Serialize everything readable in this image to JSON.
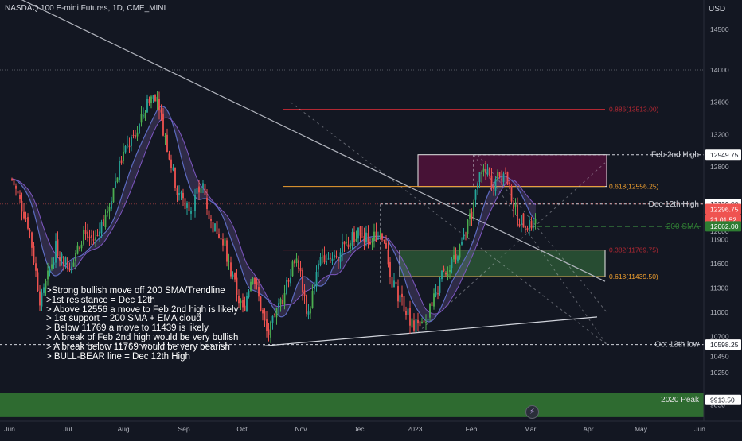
{
  "header": {
    "title": "NASDAQ 100 E-mini Futures, 1D, CME_MINI",
    "currency": "USD"
  },
  "annotations": {
    "resistance_label": "Feb 2nd High",
    "bullbear_label": "Dec 12th High",
    "sma_label": "200 SMA",
    "support_label": "Oct 13th low",
    "peak_label": "2020 Peak",
    "fib_886": "0.886(13513.00)",
    "fib_618_top": "0.618(12556.25)",
    "fib_382": "0.382(11769.75)",
    "fib_618_bottom": "0.618(11439.50)"
  },
  "price_tags": {
    "feb_high": "12949.75",
    "dec_high": "12339.00",
    "last_price": "12296.75",
    "countdown": "21:01:52",
    "sma": "12062.00",
    "oct_low": "10598.25",
    "peak": "9913.50"
  },
  "notes": [
    ">Strong bullish move off 200 SMA/Trendline",
    ">1st resistance = Dec 12th",
    "> Above 12556 a move to Feb 2nd high is likely",
    "> 1st support = 200 SMA + EMA cloud",
    "> Below 11769 a move to 11439 is likely",
    "> A break of Feb 2nd high would be very bullish",
    "> A break below 11769 would be very bearish",
    "> BULL-BEAR line  = Dec 12th High"
  ],
  "colors": {
    "background": "#131722",
    "up": "#26a69a",
    "up_bright": "#4caf50",
    "down": "#ef5350",
    "fib_red": "#b22833",
    "fib_orange": "#f0a030",
    "sma": "#2e7d32",
    "text": "#d1d4dc"
  },
  "chart_data": {
    "type": "candlestick",
    "title": "NASDAQ 100 E-mini Futures, 1D, CME_MINI",
    "x_axis": {
      "ticks": [
        "Jun",
        "Jul",
        "Aug",
        "Sep",
        "Oct",
        "Nov",
        "Dec",
        "2023",
        "Feb",
        "Mar",
        "Apr",
        "May",
        "Jun"
      ]
    },
    "y_axis": {
      "label": "USD",
      "ticks": [
        9850,
        10250,
        10450,
        10700,
        11000,
        11300,
        11600,
        11900,
        12000,
        12200,
        12800,
        13200,
        13600,
        14000,
        14500,
        15000
      ],
      "range": [
        9700,
        15200
      ]
    },
    "series": [
      {
        "key": "price",
        "points": [
          [
            "2022-06-01",
            12650
          ],
          [
            "2022-06-10",
            12050
          ],
          [
            "2022-06-16",
            11100
          ],
          [
            "2022-06-24",
            11800
          ],
          [
            "2022-07-01",
            11550
          ],
          [
            "2022-07-08",
            11950
          ],
          [
            "2022-07-15",
            11900
          ],
          [
            "2022-07-22",
            12350
          ],
          [
            "2022-07-29",
            12950
          ],
          [
            "2022-08-05",
            13200
          ],
          [
            "2022-08-12",
            13650
          ],
          [
            "2022-08-16",
            13720
          ],
          [
            "2022-08-19",
            13300
          ],
          [
            "2022-08-26",
            12550
          ],
          [
            "2022-09-02",
            12250
          ],
          [
            "2022-09-09",
            12600
          ],
          [
            "2022-09-13",
            12100
          ],
          [
            "2022-09-20",
            11900
          ],
          [
            "2022-09-23",
            11550
          ],
          [
            "2022-09-30",
            11000
          ],
          [
            "2022-10-05",
            11500
          ],
          [
            "2022-10-13",
            10700
          ],
          [
            "2022-10-21",
            11200
          ],
          [
            "2022-10-28",
            11750
          ],
          [
            "2022-11-03",
            10950
          ],
          [
            "2022-11-10",
            11700
          ],
          [
            "2022-11-18",
            11700
          ],
          [
            "2022-11-30",
            12000
          ],
          [
            "2022-12-05",
            11900
          ],
          [
            "2022-12-13",
            11950
          ],
          [
            "2022-12-16",
            11400
          ],
          [
            "2022-12-22",
            11150
          ],
          [
            "2022-12-28",
            10850
          ],
          [
            "2023-01-03",
            10800
          ],
          [
            "2023-01-06",
            11050
          ],
          [
            "2023-01-13",
            11500
          ],
          [
            "2023-01-20",
            11650
          ],
          [
            "2023-01-27",
            12150
          ],
          [
            "2023-02-02",
            12780
          ],
          [
            "2023-02-08",
            12600
          ],
          [
            "2023-02-14",
            12750
          ],
          [
            "2023-02-21",
            12150
          ],
          [
            "2023-02-28",
            12050
          ],
          [
            "2023-03-03",
            12297
          ]
        ]
      },
      {
        "name": "200 SMA",
        "level": 12062.0
      }
    ],
    "levels": [
      {
        "label": "Feb 2nd High",
        "value": 12949.75
      },
      {
        "label": "Dec 12th High",
        "value": 12339.0
      },
      {
        "label": "Oct 13th low",
        "value": 10598.25
      },
      {
        "label": "2020 Peak",
        "value": 9913.5
      },
      {
        "label": "0.886(13513.00)",
        "value": 13513.0
      },
      {
        "label": "0.618(12556.25)",
        "value": 12556.25
      },
      {
        "label": "0.382(11769.75)",
        "value": 11769.75
      },
      {
        "label": "0.618(11439.50)",
        "value": 11439.5
      }
    ],
    "last_price": 12296.75,
    "zones": [
      {
        "kind": "resistance",
        "from": 12556.25,
        "to": 12949.75
      },
      {
        "kind": "support",
        "from": 11439.5,
        "to": 11769.75
      }
    ],
    "grid": false
  }
}
